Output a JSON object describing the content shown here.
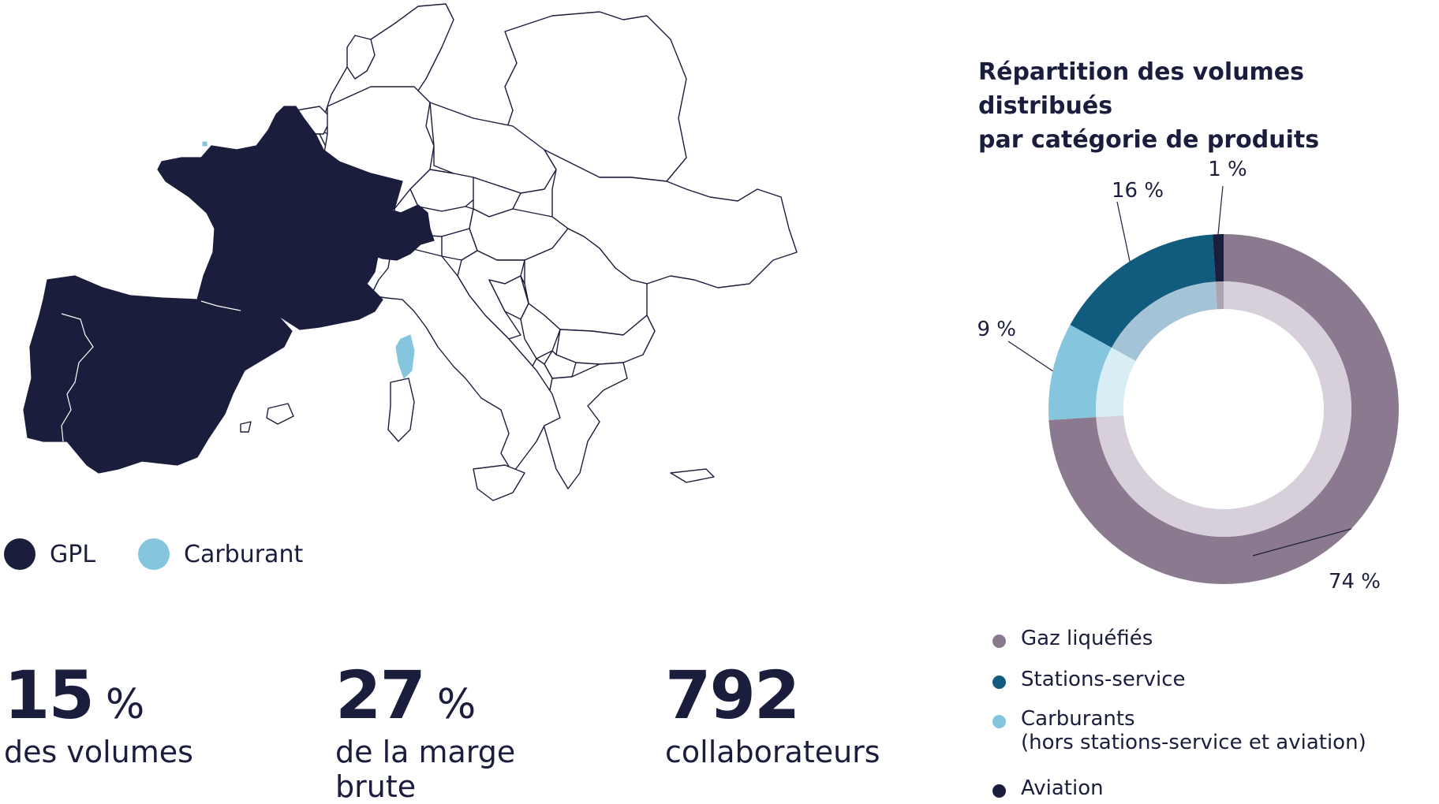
{
  "map": {
    "legend": [
      {
        "label": "GPL",
        "color": "#1b1d3c"
      },
      {
        "label": "Carburant",
        "color": "#85c5dd"
      }
    ]
  },
  "stats": [
    {
      "value": "15",
      "unit": "%",
      "label_lines": [
        "des volumes"
      ]
    },
    {
      "value": "27",
      "unit": "%",
      "label_lines": [
        "de la marge",
        "brute"
      ]
    },
    {
      "value": "792",
      "unit": "",
      "label_lines": [
        "collaborateurs"
      ]
    }
  ],
  "chart_data": {
    "type": "pie",
    "title": "Répartition des volumes distribués par catégorie de produits",
    "title_lines": [
      "Répartition des volumes distribués",
      "par catégorie de produits"
    ],
    "unit": "%",
    "slices": [
      {
        "name": "Gaz liquéfiés",
        "value": 74,
        "label": "74 %",
        "color": "#8b7a8f",
        "inner_color": "#d7cfd9"
      },
      {
        "name": "Carburants",
        "note": "(hors stations-service et aviation)",
        "value": 9,
        "label": "9 %",
        "color": "#85c5dd",
        "inner_color": "#d9edf5"
      },
      {
        "name": "Stations-service",
        "value": 16,
        "label": "16 %",
        "color": "#115c7e",
        "inner_color": "#a5c3d6"
      },
      {
        "name": "Aviation",
        "value": 1,
        "label": "1 %",
        "color": "#1b1d3c",
        "inner_color": "#a9a3ad"
      }
    ],
    "legend": [
      {
        "label": "Gaz liquéfiés",
        "sub": "",
        "color": "#8b7a8f"
      },
      {
        "label": "Stations-service",
        "sub": "",
        "color": "#115c7e"
      },
      {
        "label": "Carburants",
        "sub": "(hors stations-service et aviation)",
        "color": "#85c5dd"
      },
      {
        "label": "Aviation",
        "sub": "",
        "color": "#1b1d3c"
      }
    ]
  }
}
